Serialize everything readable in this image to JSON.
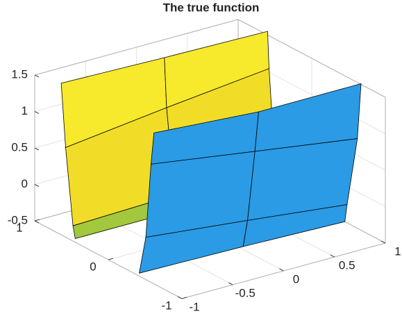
{
  "chart_data": {
    "type": "surface3d",
    "title": "The true function",
    "xlim": [
      -1,
      1
    ],
    "ylim": [
      -1,
      1
    ],
    "zlim": [
      -0.5,
      1.5
    ],
    "xticks": [
      -1,
      -0.5,
      0,
      0.5,
      1
    ],
    "yticks": [
      -1,
      0,
      1
    ],
    "zticks": [
      -0.5,
      0,
      0.5,
      1,
      1.5
    ],
    "grid": true,
    "surfaces": [
      {
        "x": [
          -1,
          0,
          1
        ],
        "y": [
          [
            0.64,
            0.62,
            0.6
          ],
          [
            0.58,
            0.59,
            0.58
          ],
          [
            0.48,
            0.48,
            0.5
          ],
          [
            0.45,
            0.45,
            0.45
          ]
        ],
        "z": [
          [
            1.58,
            1.56,
            1.55
          ],
          [
            0.73,
            0.89,
            1.05
          ],
          [
            -0.29,
            -0.25,
            -0.2
          ],
          [
            -0.45,
            -0.45,
            -0.45
          ]
        ],
        "face_colors": [
          "#f7e92c",
          "#f1dd27",
          "#a3c83d"
        ]
      },
      {
        "x": [
          -1,
          0,
          1
        ],
        "y": [
          [
            -0.62,
            -0.66,
            -0.67
          ],
          [
            -0.58,
            -0.61,
            -0.62
          ],
          [
            -0.51,
            -0.51,
            -0.48
          ],
          [
            -0.42,
            -0.45,
            -0.45
          ]
        ],
        "z": [
          [
            1.57,
            1.5,
            1.51
          ],
          [
            1.12,
            0.93,
            0.73
          ],
          [
            0.08,
            -0.07,
            -0.25
          ],
          [
            -0.46,
            -0.46,
            -0.5
          ]
        ],
        "face_colors": [
          "#2a9be4",
          "#2a9be4",
          "#2a9be4"
        ]
      }
    ]
  }
}
